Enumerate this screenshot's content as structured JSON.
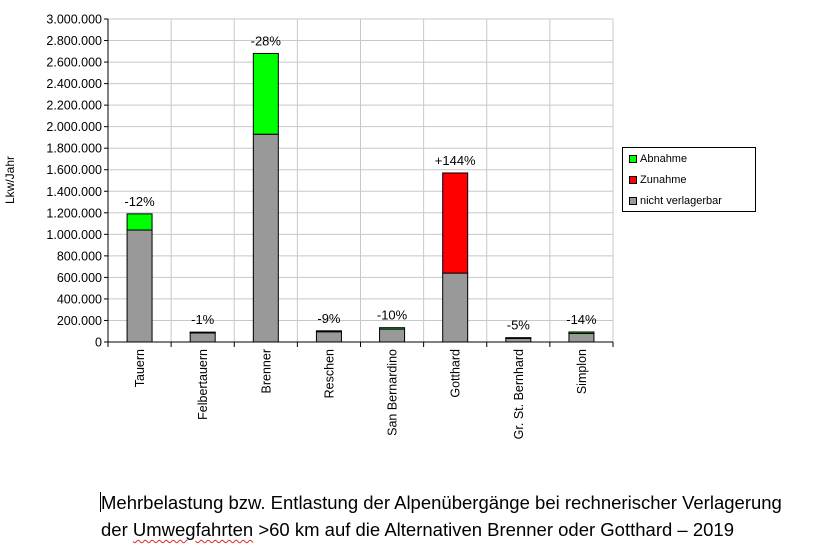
{
  "chart_data": {
    "type": "bar",
    "stacked": true,
    "ylabel": "Lkw/Jahr",
    "ylim": [
      0,
      3000000
    ],
    "y_tick_step": 200000,
    "y_tick_labels": [
      "0",
      "200.000",
      "400.000",
      "600.000",
      "800.000",
      "1.000.000",
      "1.200.000",
      "1.400.000",
      "1.600.000",
      "1.800.000",
      "2.000.000",
      "2.200.000",
      "2.400.000",
      "2.600.000",
      "2.800.000",
      "3.000.000"
    ],
    "grid": "horizontal and vertical",
    "legend_position": "right",
    "categories": [
      "Tauern",
      "Felbertauern",
      "Brenner",
      "Reschen",
      "San Bernardino",
      "Gotthard",
      "Gr. St. Bernhard",
      "Simplon"
    ],
    "series": [
      {
        "name": "nicht verlagerbar",
        "color": "#999999",
        "values": [
          1040000,
          90000,
          1930000,
          95000,
          120000,
          640000,
          38000,
          80000
        ]
      },
      {
        "name": "Zunahme",
        "color": "#ff0000",
        "values": [
          0,
          0,
          0,
          0,
          0,
          930000,
          0,
          0
        ]
      },
      {
        "name": "Abnahme",
        "color": "#00ff00",
        "values": [
          150000,
          1000,
          750000,
          9000,
          13000,
          0,
          2000,
          13000
        ]
      }
    ],
    "data_labels": [
      "-12%",
      "-1%",
      "-28%",
      "-9%",
      "-10%",
      "+144%",
      "-5%",
      "-14%"
    ]
  },
  "legend": {
    "items": [
      {
        "label": "Abnahme",
        "color": "#00ff00"
      },
      {
        "label": "Zunahme",
        "color": "#ff0000"
      },
      {
        "label": "nicht verlagerbar",
        "color": "#999999"
      }
    ]
  },
  "caption": {
    "line1": "Mehrbelastung bzw. Entlastung der Alpenübergänge bei rechnerischer Verlagerung",
    "line2_before": "der ",
    "line2_marked": "Umwegfahrten",
    "line2_after": " >60 km auf die Alternativen Brenner oder Gotthard – 2019"
  }
}
